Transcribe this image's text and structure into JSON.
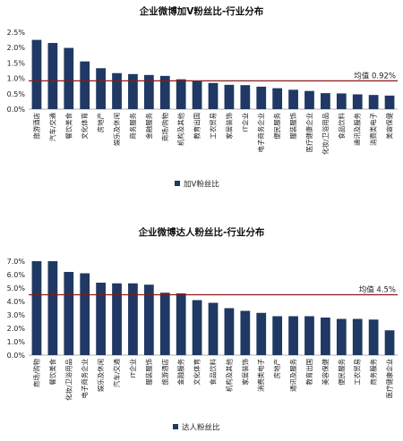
{
  "chart_data": [
    {
      "type": "bar",
      "title": "企业微博加V粉丝比-行业分布",
      "categories": [
        "旅游酒店",
        "汽车/交通",
        "餐饮美食",
        "文化体育",
        "房地产",
        "娱乐及休闲",
        "商务服务",
        "金融服务",
        "商场/购物",
        "机构及其他",
        "教育出国",
        "工农贸易",
        "家居装饰",
        "IT企业",
        "电子商务企业",
        "便民服务",
        "服装服饰",
        "医疗健康企业",
        "化妆/卫浴用品",
        "食品饮料",
        "通讯及服务",
        "消费类电子",
        "美容保健"
      ],
      "values": [
        2.25,
        2.15,
        1.99,
        1.55,
        1.33,
        1.17,
        1.14,
        1.11,
        1.08,
        0.97,
        0.92,
        0.85,
        0.79,
        0.78,
        0.73,
        0.68,
        0.63,
        0.59,
        0.52,
        0.51,
        0.48,
        0.46,
        0.44
      ],
      "ylim": [
        0,
        2.5
      ],
      "yticks": [
        "0.0%",
        "0.5%",
        "1.0%",
        "1.5%",
        "2.0%",
        "2.5%"
      ],
      "average": 0.92,
      "average_label": "均值 0.92%",
      "legend": "加V粉丝比",
      "bar_color": "#1f3864",
      "line_color": "#8b1a1a"
    },
    {
      "type": "bar",
      "title": "企业微博达人粉丝比-行业分布",
      "categories": [
        "商场/购物",
        "餐饮美食",
        "化妆/卫浴用品",
        "电子商务企业",
        "娱乐及休闲",
        "汽车/交通",
        "IT企业",
        "服装服饰",
        "旅游酒店",
        "金融服务",
        "文化体育",
        "食品饮料",
        "机构及其他",
        "家居装饰",
        "消费类电子",
        "房地产",
        "通讯及服务",
        "教育出国",
        "美容保健",
        "便民服务",
        "工农贸易",
        "商务服务",
        "医疗健康企业"
      ],
      "values": [
        7.0,
        7.0,
        6.2,
        6.1,
        5.4,
        5.35,
        5.35,
        5.25,
        4.65,
        4.6,
        4.1,
        3.9,
        3.5,
        3.3,
        3.15,
        2.9,
        2.9,
        2.9,
        2.8,
        2.7,
        2.7,
        2.65,
        1.85
      ],
      "ylim": [
        0,
        7.0
      ],
      "yticks": [
        "0.0%",
        "1.0%",
        "2.0%",
        "3.0%",
        "4.0%",
        "5.0%",
        "6.0%",
        "7.0%"
      ],
      "average": 4.5,
      "average_label": "均值 4.5%",
      "legend": "达人粉丝比",
      "bar_color": "#1f3864",
      "line_color": "#8b1a1a"
    }
  ]
}
